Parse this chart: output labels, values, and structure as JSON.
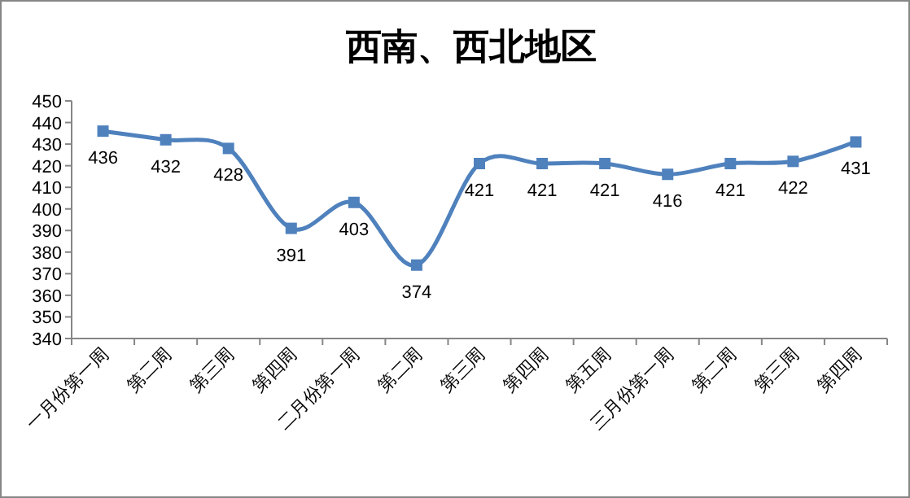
{
  "chart_data": {
    "type": "line",
    "title": "西南、西北地区",
    "categories": [
      "一月份第一周",
      "第二周",
      "第三周",
      "第四周",
      "二月份第一周",
      "第二周",
      "第三周",
      "第四周",
      "第五周",
      "三月份第一周",
      "第二周",
      "第三周",
      "第四周"
    ],
    "series": [
      {
        "color": "#4f81bd",
        "values": [
          436,
          432,
          428,
          391,
          403,
          374,
          421,
          421,
          421,
          416,
          421,
          422,
          431
        ]
      }
    ],
    "ylim": [
      340,
      450
    ],
    "yticks": [
      340,
      350,
      360,
      370,
      380,
      390,
      400,
      410,
      420,
      430,
      440,
      450
    ],
    "marker": "square",
    "data_labels": true,
    "grid": false
  }
}
